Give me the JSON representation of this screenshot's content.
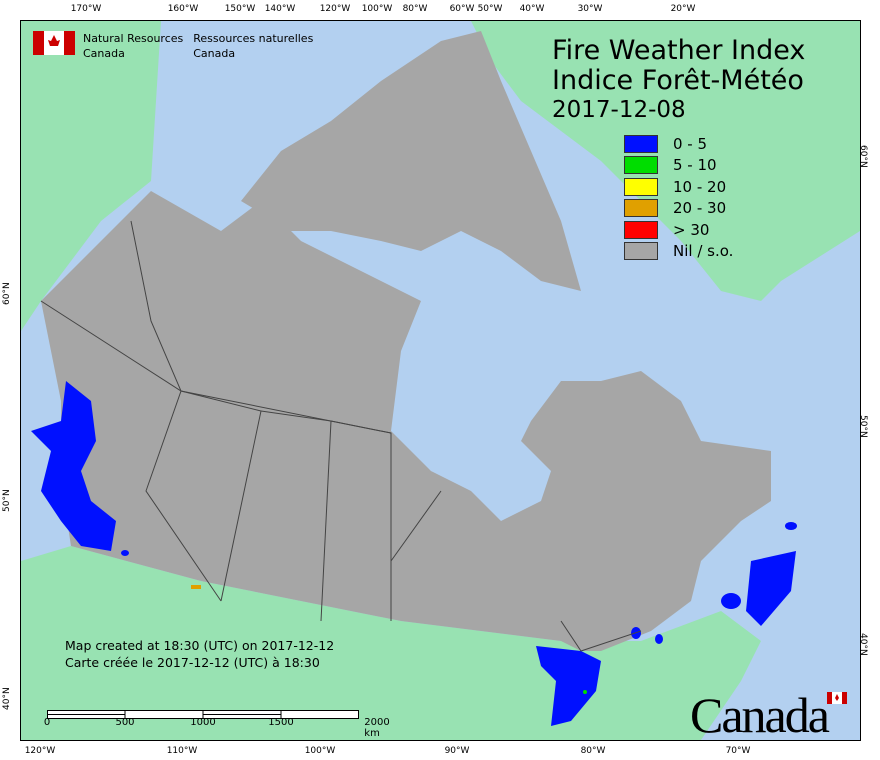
{
  "title": {
    "en": "Fire Weather Index",
    "fr": "Indice Forêt-Météo",
    "date": "2017-12-08"
  },
  "legend": [
    {
      "label": "0 - 5",
      "color": "#0010ff"
    },
    {
      "label": "5 - 10",
      "color": "#00dd00"
    },
    {
      "label": "10 - 20",
      "color": "#ffff00"
    },
    {
      "label": "20 - 30",
      "color": "#e0a000"
    },
    {
      "label": "> 30",
      "color": "#ff0000"
    },
    {
      "label": "Nil / s.o.",
      "color": "#a6a6a6"
    }
  ],
  "agency": {
    "en_line1": "Natural Resources",
    "en_line2": "Canada",
    "fr_line1": "Ressources naturelles",
    "fr_line2": "Canada"
  },
  "notes": {
    "en": "Map created at 18:30 (UTC) on 2017-12-12",
    "fr": "Carte créée le 2017-12-12 (UTC) à 18:30"
  },
  "scale_bar": {
    "labels": [
      "0",
      "500",
      "1000",
      "1500",
      "2000 km"
    ]
  },
  "top_ticks": [
    "170°W",
    "160°W",
    "150°W",
    "140°W",
    "120°W",
    "100°W",
    "80°W",
    "60°W",
    "50°W",
    "40°W",
    "30°W",
    "20°W"
  ],
  "bottom_ticks": [
    "120°W",
    "110°W",
    "100°W",
    "90°W",
    "80°W",
    "70°W"
  ],
  "left_ticks": [
    "60°N",
    "50°N",
    "40°N"
  ],
  "right_ticks": [
    "60°N",
    "50°N",
    "40°N"
  ],
  "wordmark": "Canada",
  "colors": {
    "ocean": "#b3d0f0",
    "land": "#98e2b2",
    "nodata": "#a6a6a6",
    "flag_red": "#cc0000"
  }
}
